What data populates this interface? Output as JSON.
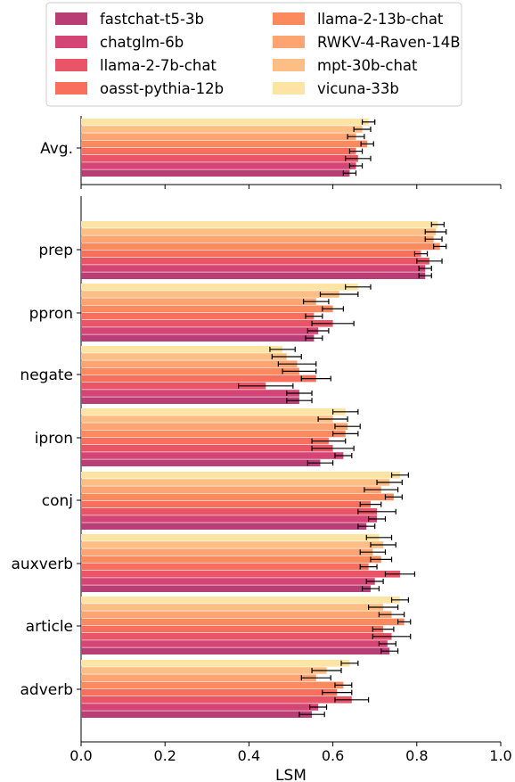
{
  "chart_data": {
    "type": "bar",
    "orientation": "horizontal",
    "xlabel": "LSM",
    "xlim": [
      0,
      1
    ],
    "xticks": [
      "0.0",
      "0.2",
      "0.4",
      "0.6",
      "0.8",
      "1.0"
    ],
    "legend_position": "top",
    "series": [
      {
        "name": "fastchat-t5-3b",
        "color": "#b93e76"
      },
      {
        "name": "chatglm-6b",
        "color": "#d44474"
      },
      {
        "name": "llama-2-7b-chat",
        "color": "#ea5467"
      },
      {
        "name": "oasst-pythia-12b",
        "color": "#f86f5d"
      },
      {
        "name": "llama-2-13b-chat",
        "color": "#fb8a5f"
      },
      {
        "name": "RWKV-4-Raven-14B",
        "color": "#fca472"
      },
      {
        "name": "mpt-30b-chat",
        "color": "#fdbe85"
      },
      {
        "name": "vicuna-33b",
        "color": "#fde4a5"
      }
    ],
    "panels": [
      {
        "categories": [
          "Avg."
        ],
        "values": [
          [
            0.64
          ],
          [
            0.655
          ],
          [
            0.66
          ],
          [
            0.655
          ],
          [
            0.682
          ],
          [
            0.655
          ],
          [
            0.67
          ],
          [
            0.685
          ]
        ],
        "errors": [
          [
            0.015
          ],
          [
            0.015
          ],
          [
            0.03
          ],
          [
            0.015
          ],
          [
            0.015
          ],
          [
            0.02
          ],
          [
            0.02
          ],
          [
            0.015
          ]
        ]
      },
      {
        "categories": [
          "prep",
          "ppron",
          "negate",
          "ipron",
          "conj",
          "auxverb",
          "article",
          "adverb"
        ],
        "values": [
          [
            0.82,
            0.555,
            0.52,
            0.57,
            0.68,
            0.69,
            0.735,
            0.55
          ],
          [
            0.82,
            0.565,
            0.52,
            0.625,
            0.705,
            0.7,
            0.73,
            0.565
          ],
          [
            0.83,
            0.6,
            0.44,
            0.6,
            0.705,
            0.76,
            0.74,
            0.645
          ],
          [
            0.81,
            0.555,
            0.56,
            0.59,
            0.69,
            0.685,
            0.72,
            0.61
          ],
          [
            0.855,
            0.6,
            0.52,
            0.63,
            0.745,
            0.715,
            0.77,
            0.625
          ],
          [
            0.84,
            0.56,
            0.515,
            0.635,
            0.715,
            0.695,
            0.74,
            0.56
          ],
          [
            0.845,
            0.615,
            0.49,
            0.6,
            0.735,
            0.72,
            0.72,
            0.585
          ],
          [
            0.85,
            0.66,
            0.48,
            0.63,
            0.76,
            0.71,
            0.76,
            0.64
          ]
        ],
        "errors": [
          [
            0.015,
            0.02,
            0.03,
            0.03,
            0.02,
            0.02,
            0.02,
            0.03
          ],
          [
            0.015,
            0.025,
            0.03,
            0.02,
            0.02,
            0.02,
            0.02,
            0.02
          ],
          [
            0.03,
            0.05,
            0.065,
            0.05,
            0.045,
            0.035,
            0.045,
            0.04
          ],
          [
            0.015,
            0.02,
            0.035,
            0.04,
            0.025,
            0.02,
            0.025,
            0.035
          ],
          [
            0.015,
            0.025,
            0.04,
            0.03,
            0.02,
            0.025,
            0.015,
            0.02
          ],
          [
            0.02,
            0.03,
            0.045,
            0.03,
            0.04,
            0.03,
            0.03,
            0.035
          ],
          [
            0.025,
            0.045,
            0.035,
            0.035,
            0.03,
            0.03,
            0.035,
            0.035
          ],
          [
            0.015,
            0.03,
            0.03,
            0.03,
            0.02,
            0.03,
            0.02,
            0.02
          ]
        ]
      }
    ]
  }
}
